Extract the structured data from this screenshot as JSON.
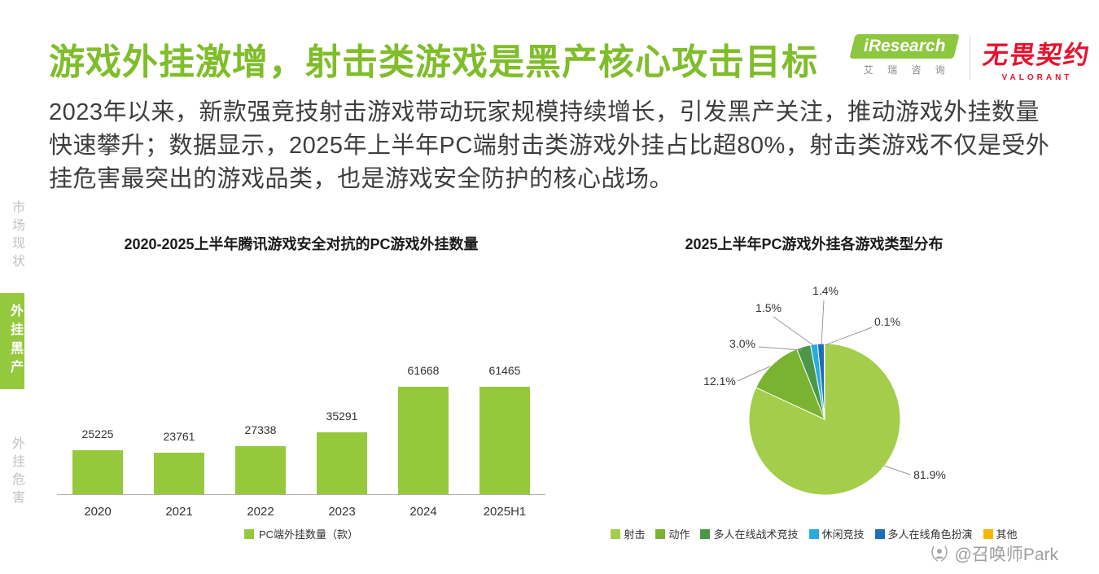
{
  "page": {
    "title": "游戏外挂激增，射击类游戏是黑产核心攻击目标",
    "paragraph": "2023年以来，新款强竞技射击游戏带动玩家规模持续增长，引发黑产关注，推动游戏外挂数量快速攀升；数据显示，2025年上半年PC端射击类游戏外挂占比超80%，射击类游戏不仅是受外挂危害最突出的游戏品类，也是游戏安全防护的核心战场。"
  },
  "logos": {
    "iresearch_en": "iResearch",
    "iresearch_cn": "艾 瑞 咨 询",
    "valorant_cn": "无畏契约",
    "valorant_en": "VALORANT"
  },
  "sidebar": {
    "items": [
      {
        "label": "市场现状",
        "active": false
      },
      {
        "label": "外挂黑产",
        "active": true
      },
      {
        "label": "外挂危害",
        "active": false
      }
    ]
  },
  "watermark": "@召唤师Park",
  "colors": {
    "accent_green": "#7FBD2A",
    "bar_green": "#95C93B",
    "valorant_red": "#E8112D"
  },
  "chart_data": [
    {
      "type": "bar",
      "title": "2020-2025上半年腾讯游戏安全对抗的PC游戏外挂数量",
      "categories": [
        "2020",
        "2021",
        "2022",
        "2023",
        "2024",
        "2025H1"
      ],
      "values": [
        25225,
        23761,
        27338,
        35291,
        61668,
        61465
      ],
      "xlabel": "",
      "ylabel": "",
      "ylim": [
        0,
        65000
      ],
      "grid": false,
      "legend": [
        "PC端外挂数量（款）"
      ],
      "bar_color": "#95C93B"
    },
    {
      "type": "pie",
      "title": "2025上半年PC游戏外挂各游戏类型分布",
      "legend_position": "bottom",
      "slices": [
        {
          "label": "射击",
          "value": 81.9,
          "color": "#A4CD4C"
        },
        {
          "label": "动作",
          "value": 12.1,
          "color": "#7AB331"
        },
        {
          "label": "多人在线战术竞技",
          "value": 3.0,
          "color": "#4C9747"
        },
        {
          "label": "休闲竞技",
          "value": 1.5,
          "color": "#29ABE2"
        },
        {
          "label": "多人在线角色扮演",
          "value": 1.4,
          "color": "#1F6FB5"
        },
        {
          "label": "其他",
          "value": 0.1,
          "color": "#F5B800"
        }
      ]
    }
  ]
}
